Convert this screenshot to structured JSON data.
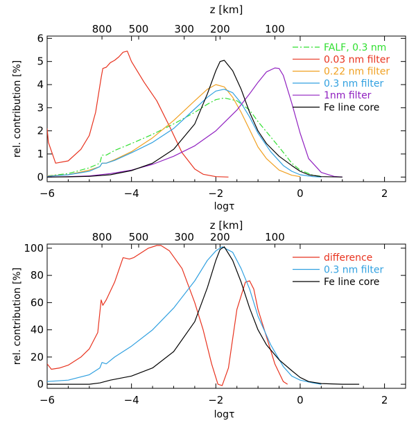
{
  "chart_data": [
    {
      "type": "line",
      "top_axis_title": "z [km]",
      "top_ticks": [
        {
          "label": "800",
          "x": -4.7
        },
        {
          "label": "500",
          "x": -3.83
        },
        {
          "label": "300",
          "x": -2.75
        },
        {
          "label": "200",
          "x": -1.9
        },
        {
          "label": "100",
          "x": -0.6
        }
      ],
      "xlabel": "logτ",
      "ylabel": "rel. contribution [%]",
      "xlim": [
        -6,
        2.5
      ],
      "ylim": [
        -0.2,
        6.1
      ],
      "xticks": [
        -6,
        -4,
        -2,
        0,
        2
      ],
      "xtick_labels": [
        "−6",
        "−4",
        "−2",
        "0",
        "2"
      ],
      "yticks": [
        0,
        1,
        2,
        3,
        4,
        5,
        6
      ],
      "ytick_labels": [
        "0",
        "1",
        "2",
        "3",
        "4",
        "5",
        "6"
      ],
      "series": [
        {
          "name": "FALF, 0.3 nm",
          "color": "#2fdf2f",
          "dash": "dashdot",
          "x": [
            -6,
            -5.5,
            -5,
            -4.75,
            -4.7,
            -4.6,
            -4.4,
            -4,
            -3.5,
            -3,
            -2.5,
            -2.2,
            -2,
            -1.8,
            -1.5,
            -1.2,
            -1,
            -0.5,
            -0.2,
            0,
            0.3,
            0.5
          ],
          "y": [
            0.05,
            0.15,
            0.4,
            0.6,
            0.95,
            0.95,
            1.15,
            1.45,
            1.85,
            2.3,
            2.8,
            3.15,
            3.35,
            3.42,
            3.3,
            2.9,
            2.4,
            1.3,
            0.6,
            0.3,
            0.08,
            0.03
          ]
        },
        {
          "name": "0.03 nm filter",
          "color": "#e8321e",
          "dash": "solid",
          "x": [
            -6,
            -5.97,
            -5.8,
            -5.5,
            -5.2,
            -5,
            -4.85,
            -4.72,
            -4.68,
            -4.6,
            -4.5,
            -4.4,
            -4.3,
            -4.2,
            -4.1,
            -4,
            -3.7,
            -3.4,
            -3.1,
            -2.8,
            -2.5,
            -2.3,
            -2,
            -1.7
          ],
          "y": [
            2.1,
            1.5,
            0.6,
            0.7,
            1.2,
            1.8,
            2.8,
            4.3,
            4.7,
            4.75,
            4.95,
            5.05,
            5.2,
            5.4,
            5.45,
            5.0,
            4.1,
            3.3,
            2.2,
            1.05,
            0.35,
            0.12,
            0.02,
            0
          ]
        },
        {
          "name": "0.22 nm filter",
          "color": "#f0a020",
          "dash": "solid",
          "x": [
            -6,
            -5.5,
            -5,
            -4.75,
            -4.7,
            -4.6,
            -4.4,
            -4,
            -3.5,
            -3,
            -2.5,
            -2.2,
            -2,
            -1.8,
            -1.6,
            -1.4,
            -1.2,
            -1,
            -0.8,
            -0.5,
            -0.2,
            0
          ],
          "y": [
            0.05,
            0.1,
            0.3,
            0.45,
            0.6,
            0.6,
            0.75,
            1.1,
            1.7,
            2.45,
            3.3,
            3.8,
            4.0,
            3.9,
            3.45,
            2.8,
            2.05,
            1.3,
            0.8,
            0.3,
            0.08,
            0.02
          ]
        },
        {
          "name": "0.3 nm filter",
          "color": "#30a0e0",
          "dash": "solid",
          "x": [
            -6,
            -5.5,
            -5,
            -4.75,
            -4.7,
            -4.6,
            -4.4,
            -4,
            -3.5,
            -3,
            -2.5,
            -2.2,
            -2,
            -1.8,
            -1.6,
            -1.4,
            -1.2,
            -1,
            -0.7,
            -0.4,
            -0.2,
            0,
            0.3,
            0.5
          ],
          "y": [
            0.03,
            0.1,
            0.25,
            0.45,
            0.6,
            0.6,
            0.72,
            1.05,
            1.5,
            2.1,
            2.95,
            3.45,
            3.72,
            3.8,
            3.65,
            3.2,
            2.6,
            1.9,
            1.1,
            0.5,
            0.25,
            0.1,
            0.02,
            0
          ]
        },
        {
          "name": "1nm filter",
          "color": "#9020c0",
          "dash": "solid",
          "x": [
            -6,
            -5.5,
            -5,
            -4.5,
            -4,
            -3.5,
            -3,
            -2.5,
            -2,
            -1.5,
            -1.2,
            -1,
            -0.8,
            -0.6,
            -0.5,
            -0.4,
            -0.2,
            0,
            0.2,
            0.5,
            0.8,
            1
          ],
          "y": [
            0,
            0.02,
            0.05,
            0.15,
            0.3,
            0.55,
            0.9,
            1.35,
            2.0,
            2.9,
            3.6,
            4.1,
            4.55,
            4.72,
            4.7,
            4.4,
            3.2,
            1.9,
            0.8,
            0.2,
            0.03,
            0
          ]
        },
        {
          "name": "Fe line core",
          "color": "#000000",
          "dash": "solid",
          "x": [
            -6,
            -5.5,
            -5,
            -4.5,
            -4,
            -3.5,
            -3,
            -2.5,
            -2.2,
            -2,
            -1.9,
            -1.8,
            -1.6,
            -1.4,
            -1.2,
            -1,
            -0.8,
            -0.5,
            -0.2,
            0,
            0.2,
            0.5,
            1
          ],
          "y": [
            0,
            0.01,
            0.03,
            0.1,
            0.28,
            0.6,
            1.2,
            2.3,
            3.6,
            4.6,
            5.0,
            5.05,
            4.6,
            3.8,
            2.8,
            2.0,
            1.45,
            0.9,
            0.5,
            0.25,
            0.1,
            0.02,
            0
          ]
        }
      ]
    },
    {
      "type": "line",
      "top_axis_title": "z [km]",
      "top_ticks": [
        {
          "label": "800",
          "x": -4.7
        },
        {
          "label": "500",
          "x": -3.83
        },
        {
          "label": "300",
          "x": -2.75
        },
        {
          "label": "200",
          "x": -1.9
        },
        {
          "label": "100",
          "x": -0.6
        }
      ],
      "xlabel": "logτ",
      "ylabel": "rel. contribution [%]",
      "xlim": [
        -6,
        2.5
      ],
      "ylim": [
        -3,
        103
      ],
      "xticks": [
        -6,
        -4,
        -2,
        0,
        2
      ],
      "xtick_labels": [
        "−6",
        "−4",
        "−2",
        "0",
        "2"
      ],
      "yticks": [
        0,
        20,
        40,
        60,
        80,
        100
      ],
      "ytick_labels": [
        "0",
        "20",
        "40",
        "60",
        "80",
        "100"
      ],
      "series": [
        {
          "name": "difference",
          "color": "#e8321e",
          "dash": "solid",
          "x": [
            -6,
            -5.9,
            -5.7,
            -5.5,
            -5.2,
            -5,
            -4.8,
            -4.72,
            -4.68,
            -4.6,
            -4.4,
            -4.2,
            -4.05,
            -3.95,
            -3.8,
            -3.6,
            -3.4,
            -3.3,
            -3.1,
            -2.8,
            -2.5,
            -2.3,
            -2.1,
            -1.95,
            -1.85,
            -1.7,
            -1.5,
            -1.3,
            -1.2,
            -1.1,
            -1,
            -0.8,
            -0.6,
            -0.4,
            -0.3
          ],
          "y": [
            15,
            11,
            12,
            14,
            20,
            26,
            38,
            62,
            58,
            62,
            75,
            93,
            92,
            93,
            96,
            100,
            102,
            102,
            98,
            85,
            60,
            40,
            15,
            0,
            -1,
            12,
            55,
            75,
            76,
            70,
            55,
            35,
            15,
            2,
            0
          ]
        },
        {
          "name": "0.3 nm filter",
          "color": "#30a0e0",
          "dash": "solid",
          "x": [
            -6,
            -5.5,
            -5,
            -4.75,
            -4.7,
            -4.6,
            -4.4,
            -4,
            -3.5,
            -3,
            -2.5,
            -2.2,
            -2,
            -1.85,
            -1.6,
            -1.4,
            -1.2,
            -1,
            -0.7,
            -0.4,
            -0.2,
            0,
            0.3,
            0.5
          ],
          "y": [
            2,
            3,
            7,
            12,
            16,
            15,
            20,
            28,
            40,
            56,
            76,
            91,
            98,
            101,
            97,
            85,
            70,
            50,
            29,
            13,
            6,
            3,
            1,
            0
          ]
        },
        {
          "name": "Fe line core",
          "color": "#000000",
          "dash": "solid",
          "x": [
            -6,
            -5.5,
            -5,
            -4.75,
            -4.5,
            -4,
            -3.5,
            -3,
            -2.5,
            -2.2,
            -2,
            -1.9,
            -1.8,
            -1.6,
            -1.4,
            -1.2,
            -1,
            -0.8,
            -0.5,
            -0.2,
            0,
            0.2,
            0.5,
            1,
            1.4
          ],
          "y": [
            0,
            0,
            0,
            1,
            3,
            6,
            12,
            24,
            46,
            71,
            91,
            99,
            101,
            91,
            75,
            56,
            40,
            29,
            18,
            10,
            5,
            2,
            0.5,
            0,
            0
          ]
        }
      ]
    }
  ]
}
